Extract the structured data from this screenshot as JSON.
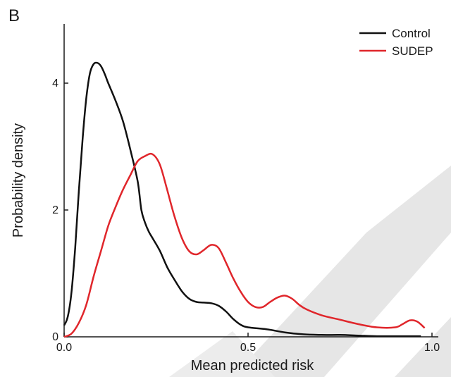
{
  "panel_label": "B",
  "chart_data": {
    "type": "line",
    "title": "",
    "xlabel": "Mean predicted risk",
    "ylabel": "Probability density",
    "xlim": [
      0.0,
      1.0
    ],
    "ylim": [
      0,
      5
    ],
    "x_ticks": [
      0.0,
      0.5,
      1.0
    ],
    "x_tick_labels": [
      "0.0",
      "0.5",
      "1.0"
    ],
    "y_ticks": [
      0,
      2,
      4
    ],
    "y_tick_labels": [
      "0",
      "2",
      "4"
    ],
    "grid": false,
    "legend_position": "top-right",
    "series": [
      {
        "name": "Control",
        "color": "#111111",
        "x": [
          0.0,
          0.01,
          0.02,
          0.03,
          0.04,
          0.05,
          0.06,
          0.07,
          0.08,
          0.09,
          0.1,
          0.11,
          0.12,
          0.14,
          0.16,
          0.18,
          0.2,
          0.21,
          0.22,
          0.23,
          0.24,
          0.26,
          0.28,
          0.3,
          0.32,
          0.34,
          0.36,
          0.38,
          0.4,
          0.42,
          0.44,
          0.46,
          0.48,
          0.5,
          0.55,
          0.6,
          0.65,
          0.7,
          0.75,
          0.8,
          0.85,
          0.9,
          0.95,
          0.97
        ],
        "y": [
          0.18,
          0.32,
          0.7,
          1.4,
          2.3,
          3.1,
          3.75,
          4.15,
          4.3,
          4.32,
          4.27,
          4.15,
          4.0,
          3.72,
          3.4,
          2.95,
          2.45,
          2.0,
          1.8,
          1.66,
          1.56,
          1.36,
          1.1,
          0.9,
          0.72,
          0.6,
          0.55,
          0.54,
          0.53,
          0.49,
          0.4,
          0.28,
          0.19,
          0.15,
          0.12,
          0.07,
          0.04,
          0.03,
          0.03,
          0.02,
          0.01,
          0.01,
          0.01,
          0.01
        ]
      },
      {
        "name": "SUDEP",
        "color": "#e0262b",
        "x": [
          0.0,
          0.02,
          0.04,
          0.06,
          0.08,
          0.1,
          0.12,
          0.14,
          0.16,
          0.18,
          0.2,
          0.22,
          0.24,
          0.26,
          0.28,
          0.3,
          0.32,
          0.34,
          0.36,
          0.38,
          0.4,
          0.42,
          0.44,
          0.46,
          0.48,
          0.5,
          0.52,
          0.54,
          0.56,
          0.58,
          0.6,
          0.62,
          0.64,
          0.66,
          0.7,
          0.75,
          0.8,
          0.85,
          0.9,
          0.92,
          0.94,
          0.96,
          0.98
        ],
        "y": [
          0.0,
          0.05,
          0.22,
          0.5,
          0.95,
          1.35,
          1.75,
          2.05,
          2.32,
          2.55,
          2.77,
          2.85,
          2.88,
          2.72,
          2.32,
          1.9,
          1.56,
          1.35,
          1.3,
          1.37,
          1.45,
          1.4,
          1.17,
          0.92,
          0.71,
          0.55,
          0.47,
          0.47,
          0.55,
          0.62,
          0.65,
          0.6,
          0.5,
          0.43,
          0.34,
          0.27,
          0.2,
          0.15,
          0.15,
          0.2,
          0.26,
          0.24,
          0.14
        ]
      }
    ]
  }
}
